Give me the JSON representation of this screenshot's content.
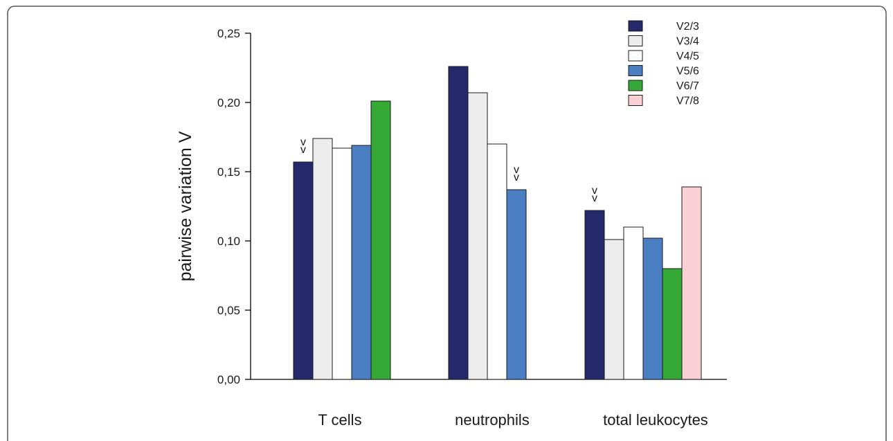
{
  "chart_data": {
    "type": "bar",
    "ylabel": "pairwise variation V",
    "xlabel": "",
    "ylim": [
      0,
      0.25
    ],
    "yticks": [
      "0,00",
      "0,05",
      "0,10",
      "0,15",
      "0,20",
      "0,25"
    ],
    "ytick_values": [
      0,
      0.05,
      0.1,
      0.15,
      0.2,
      0.25
    ],
    "categories": [
      "T cells",
      "neutrophils",
      "total leukocytes"
    ],
    "legend_position": "top-right",
    "marker_symbol": "v v",
    "series": [
      {
        "name": "V2/3",
        "color": "#23296b",
        "values": [
          0.157,
          0.226,
          0.122
        ]
      },
      {
        "name": "V3/4",
        "color": "#ececec",
        "values": [
          0.174,
          0.207,
          0.101
        ]
      },
      {
        "name": "V4/5",
        "color": "#ffffff",
        "values": [
          0.167,
          0.17,
          0.11
        ]
      },
      {
        "name": "V5/6",
        "color": "#4a7fc4",
        "values": [
          0.169,
          0.137,
          0.102
        ]
      },
      {
        "name": "V6/7",
        "color": "#36a835",
        "values": [
          0.201,
          null,
          0.08
        ]
      },
      {
        "name": "V7/8",
        "color": "#f9d1d4",
        "values": [
          null,
          null,
          0.139
        ]
      }
    ],
    "annotations": [
      {
        "text": "v v",
        "category": "T cells",
        "series": "V2/3"
      },
      {
        "text": "v v",
        "category": "neutrophils",
        "series": "V5/6"
      },
      {
        "text": "v v",
        "category": "total leukocytes",
        "series": "V2/3"
      }
    ]
  }
}
